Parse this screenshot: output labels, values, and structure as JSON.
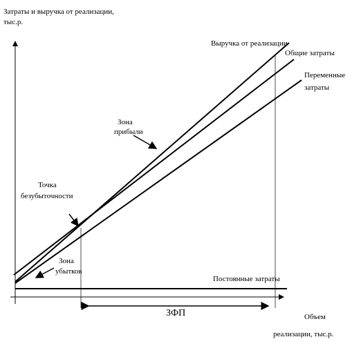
{
  "y_axis_label": [
    "Затраты и выручка от реализации,",
    "тыс.р."
  ],
  "x_axis_label": [
    "Объем",
    "реализации, тыс.р."
  ],
  "line_labels": {
    "revenue": "Выручка от реализации",
    "total_costs": "Общие затраты",
    "variable_costs": [
      "Переменные",
      "затраты"
    ],
    "fixed_costs": "Постоянные затраты"
  },
  "annotations": {
    "profit_zone": [
      "Зона",
      "прибыли"
    ],
    "break_even": [
      "Точка",
      "безубыточности"
    ],
    "loss_zone": [
      "Зона",
      "убытков"
    ],
    "safety_margin": "ЗФП"
  }
}
